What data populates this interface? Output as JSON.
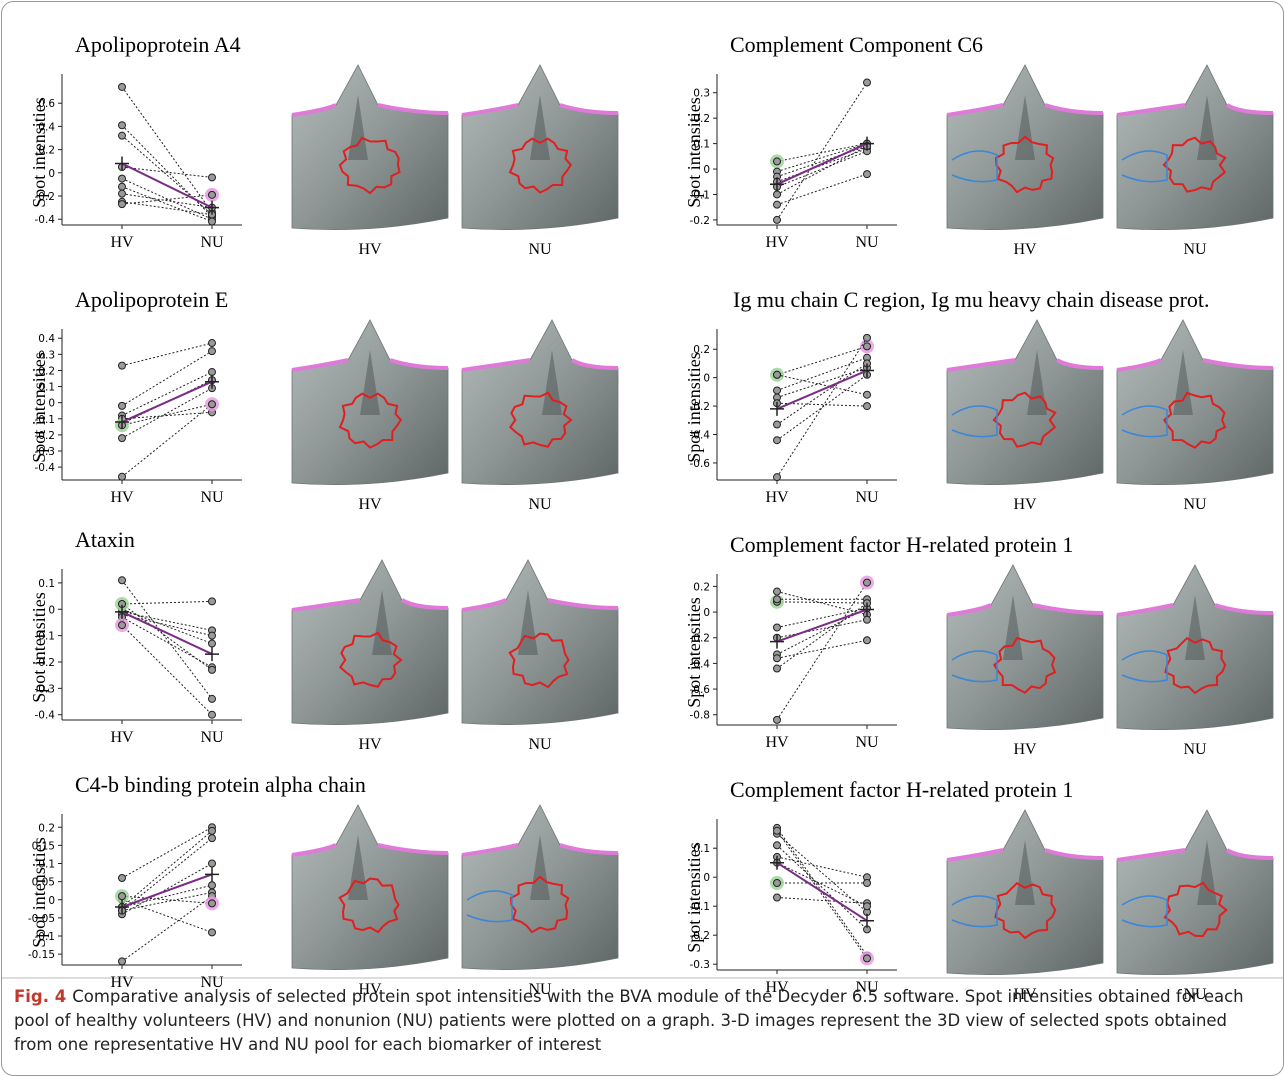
{
  "chart_data": [
    {
      "type": "line",
      "title": "Apolipoprotein A4",
      "ylabel": "Spot intensities",
      "categories": [
        "HV",
        "NU"
      ],
      "ylim": [
        -0.45,
        0.8
      ],
      "yticks": [
        -0.4,
        -0.2,
        0,
        0.2,
        0.4,
        0.6
      ],
      "image_labels": [
        "HV",
        "NU"
      ],
      "series": [
        {
          "color": "#222222",
          "values": [
            0.74,
            -0.34
          ]
        },
        {
          "color": "#222222",
          "values": [
            0.41,
            -0.38
          ]
        },
        {
          "color": "#222222",
          "values": [
            0.32,
            -0.36
          ]
        },
        {
          "color": "#222222",
          "values": [
            0.05,
            -0.04
          ]
        },
        {
          "color": "#222222",
          "values": [
            -0.05,
            -0.4
          ]
        },
        {
          "color": "#222222",
          "values": [
            -0.12,
            -0.42
          ]
        },
        {
          "color": "#222222",
          "values": [
            -0.18,
            -0.3
          ]
        },
        {
          "color": "#222222",
          "values": [
            -0.25,
            -0.36
          ]
        },
        {
          "color": "#222222",
          "values": [
            -0.27,
            -0.19
          ],
          "marker_colors": [
            "#999999",
            "#e99be3"
          ]
        },
        {
          "color": "#7a2b86",
          "marker": "cross",
          "values": [
            0.08,
            -0.3
          ]
        }
      ]
    },
    {
      "type": "line",
      "title": "Apolipoprotein E",
      "ylabel": "Spot intensities",
      "categories": [
        "HV",
        "NU"
      ],
      "ylim": [
        -0.48,
        0.42
      ],
      "yticks": [
        -0.4,
        -0.3,
        -0.2,
        -0.1,
        0,
        0.1,
        0.2,
        0.3,
        0.4
      ],
      "image_labels": [
        "HV",
        "NU"
      ],
      "series": [
        {
          "color": "#222222",
          "values": [
            0.23,
            0.37
          ]
        },
        {
          "color": "#222222",
          "values": [
            -0.02,
            0.32
          ]
        },
        {
          "color": "#222222",
          "values": [
            -0.08,
            0.19
          ]
        },
        {
          "color": "#222222",
          "values": [
            -0.13,
            0.14
          ]
        },
        {
          "color": "#222222",
          "values": [
            -0.22,
            0.09
          ]
        },
        {
          "color": "#222222",
          "values": [
            -0.1,
            -0.06
          ]
        },
        {
          "color": "#222222",
          "values": [
            -0.46,
            -0.01
          ]
        },
        {
          "color": "#222222",
          "values": [
            -0.14,
            -0.01
          ],
          "marker_colors": [
            "#9fd49a",
            "#e99be3"
          ]
        },
        {
          "color": "#7a2b86",
          "marker": "cross",
          "values": [
            -0.12,
            0.13
          ]
        }
      ]
    },
    {
      "type": "line",
      "title": "Ataxin",
      "ylabel": "Spot intensities",
      "categories": [
        "HV",
        "NU"
      ],
      "ylim": [
        -0.42,
        0.13
      ],
      "yticks": [
        -0.4,
        -0.3,
        -0.2,
        -0.1,
        0,
        0.1
      ],
      "image_labels": [
        "HV",
        "NU"
      ],
      "series": [
        {
          "color": "#222222",
          "values": [
            0.11,
            -0.34
          ]
        },
        {
          "color": "#222222",
          "values": [
            0.02,
            0.03
          ]
        },
        {
          "color": "#222222",
          "values": [
            -0.01,
            -0.08
          ]
        },
        {
          "color": "#222222",
          "values": [
            -0.02,
            -0.1
          ]
        },
        {
          "color": "#222222",
          "values": [
            0,
            -0.13
          ]
        },
        {
          "color": "#222222",
          "values": [
            -0.03,
            -0.22
          ]
        },
        {
          "color": "#222222",
          "values": [
            0.02,
            -0.23
          ],
          "marker_colors": [
            "#9fd49a",
            "#999999"
          ]
        },
        {
          "color": "#222222",
          "values": [
            -0.06,
            -0.4
          ],
          "marker_colors": [
            "#e99be3",
            "#999999"
          ]
        },
        {
          "color": "#7a2b86",
          "marker": "cross",
          "values": [
            -0.01,
            -0.17
          ]
        }
      ]
    },
    {
      "type": "line",
      "title": "C4-b binding protein alpha chain",
      "ylabel": "Spot intensities",
      "categories": [
        "HV",
        "NU"
      ],
      "ylim": [
        -0.18,
        0.22
      ],
      "yticks": [
        -0.15,
        -0.1,
        -0.05,
        0,
        0.05,
        0.1,
        0.15,
        0.2
      ],
      "image_labels": [
        "HV",
        "NU"
      ],
      "series": [
        {
          "color": "#222222",
          "values": [
            0.06,
            0.2
          ]
        },
        {
          "color": "#222222",
          "values": [
            -0.02,
            0.19
          ]
        },
        {
          "color": "#222222",
          "values": [
            -0.03,
            0.17
          ]
        },
        {
          "color": "#222222",
          "values": [
            -0.04,
            0.1
          ]
        },
        {
          "color": "#222222",
          "values": [
            -0.02,
            0.04
          ]
        },
        {
          "color": "#222222",
          "values": [
            -0.03,
            0.02
          ]
        },
        {
          "color": "#222222",
          "values": [
            0,
            -0.09
          ]
        },
        {
          "color": "#222222",
          "values": [
            -0.17,
            0.01
          ]
        },
        {
          "color": "#222222",
          "values": [
            0.01,
            -0.01
          ],
          "marker_colors": [
            "#9fd49a",
            "#e99be3"
          ]
        },
        {
          "color": "#7a2b86",
          "marker": "cross",
          "values": [
            -0.02,
            0.07
          ]
        }
      ]
    },
    {
      "type": "line",
      "title": "Complement Component C6",
      "ylabel": "Spot intensities",
      "categories": [
        "HV",
        "NU"
      ],
      "ylim": [
        -0.22,
        0.35
      ],
      "yticks": [
        -0.2,
        -0.1,
        0,
        0.1,
        0.2,
        0.3
      ],
      "image_labels": [
        "HV",
        "NU"
      ],
      "series": [
        {
          "color": "#222222",
          "values": [
            -0.2,
            0.34
          ]
        },
        {
          "color": "#222222",
          "values": [
            0.03,
            0.1
          ],
          "marker_colors": [
            "#9fd49a",
            "#999999"
          ]
        },
        {
          "color": "#222222",
          "values": [
            -0.01,
            0.1
          ]
        },
        {
          "color": "#222222",
          "values": [
            -0.03,
            0.09
          ]
        },
        {
          "color": "#222222",
          "values": [
            -0.05,
            0.08
          ]
        },
        {
          "color": "#222222",
          "values": [
            -0.07,
            0.07
          ]
        },
        {
          "color": "#222222",
          "values": [
            -0.1,
            0.09
          ]
        },
        {
          "color": "#222222",
          "values": [
            -0.14,
            -0.02
          ]
        },
        {
          "color": "#7a2b86",
          "marker": "cross",
          "values": [
            -0.06,
            0.1
          ]
        }
      ]
    },
    {
      "type": "line",
      "title": "Ig mu chain C region, Ig mu heavy chain disease prot.",
      "ylabel": "Spot intensities",
      "categories": [
        "HV",
        "NU"
      ],
      "ylim": [
        -0.72,
        0.3
      ],
      "yticks": [
        -0.6,
        -0.4,
        -0.2,
        0,
        0.2
      ],
      "image_labels": [
        "HV",
        "NU"
      ],
      "series": [
        {
          "color": "#222222",
          "values": [
            0.02,
            0.22
          ],
          "marker_colors": [
            "#9fd49a",
            "#e99be3"
          ]
        },
        {
          "color": "#222222",
          "values": [
            0.02,
            -0.12
          ]
        },
        {
          "color": "#222222",
          "values": [
            -0.09,
            0.14
          ]
        },
        {
          "color": "#222222",
          "values": [
            -0.14,
            0.07
          ]
        },
        {
          "color": "#222222",
          "values": [
            -0.18,
            -0.2
          ]
        },
        {
          "color": "#222222",
          "values": [
            -0.33,
            0.1
          ]
        },
        {
          "color": "#222222",
          "values": [
            -0.44,
            0.02
          ]
        },
        {
          "color": "#222222",
          "values": [
            -0.7,
            0.28
          ]
        },
        {
          "color": "#7a2b86",
          "marker": "cross",
          "values": [
            -0.22,
            0.05
          ]
        }
      ]
    },
    {
      "type": "line",
      "title": "Complement factor H-related protein 1",
      "ylabel": "Spot intensities",
      "categories": [
        "HV",
        "NU"
      ],
      "ylim": [
        -0.88,
        0.25
      ],
      "yticks": [
        -0.8,
        -0.6,
        -0.4,
        -0.2,
        0,
        0.2
      ],
      "image_labels": [
        "HV",
        "NU"
      ],
      "series": [
        {
          "color": "#222222",
          "values": [
            0.16,
            -0.02
          ]
        },
        {
          "color": "#222222",
          "values": [
            0.08,
            0.07
          ],
          "marker_colors": [
            "#9fd49a",
            "#999999"
          ]
        },
        {
          "color": "#222222",
          "values": [
            0.1,
            0.1
          ]
        },
        {
          "color": "#222222",
          "values": [
            -0.12,
            0.03
          ]
        },
        {
          "color": "#222222",
          "values": [
            -0.2,
            -0.06
          ]
        },
        {
          "color": "#222222",
          "values": [
            -0.33,
            0.03
          ]
        },
        {
          "color": "#222222",
          "values": [
            -0.36,
            -0.22
          ]
        },
        {
          "color": "#222222",
          "values": [
            -0.44,
            0.07
          ]
        },
        {
          "color": "#222222",
          "values": [
            -0.84,
            0.23
          ],
          "marker_colors": [
            "#999999",
            "#e99be3"
          ]
        },
        {
          "color": "#7a2b86",
          "marker": "cross",
          "values": [
            -0.23,
            0.02
          ]
        }
      ]
    },
    {
      "type": "line",
      "title": "Complement factor H-related protein 1",
      "ylabel": "Spot intensities",
      "categories": [
        "HV",
        "NU"
      ],
      "ylim": [
        -0.32,
        0.18
      ],
      "yticks": [
        -0.3,
        -0.2,
        -0.1,
        0,
        0.1
      ],
      "image_labels": [
        "HV",
        "NU"
      ],
      "series": [
        {
          "color": "#222222",
          "values": [
            0.17,
            -0.27
          ]
        },
        {
          "color": "#222222",
          "values": [
            0.15,
            -0.12
          ]
        },
        {
          "color": "#222222",
          "values": [
            0.11,
            -0.18
          ]
        },
        {
          "color": "#222222",
          "values": [
            0.07,
            0
          ]
        },
        {
          "color": "#222222",
          "values": [
            -0.02,
            -0.02
          ],
          "marker_colors": [
            "#9fd49a",
            "#999999"
          ]
        },
        {
          "color": "#222222",
          "values": [
            -0.07,
            -0.09
          ]
        },
        {
          "color": "#222222",
          "values": [
            0.05,
            -0.1
          ]
        },
        {
          "color": "#222222",
          "values": [
            0.16,
            -0.28
          ],
          "marker_colors": [
            "#999999",
            "#e99be3"
          ]
        },
        {
          "color": "#7a2b86",
          "marker": "cross",
          "values": [
            0.05,
            -0.15
          ]
        }
      ]
    }
  ],
  "caption": {
    "label": "Fig. 4",
    "text": "Comparative analysis of selected protein spot intensities with the BVA module of the Decyder 6.5 software. Spot intensities obtained for each pool of healthy volunteers (HV) and nonunion (NU) patients were plotted on a graph. 3-D images represent the 3D view of selected spots obtained from one representative HV and NU pool for each biomarker of interest"
  }
}
